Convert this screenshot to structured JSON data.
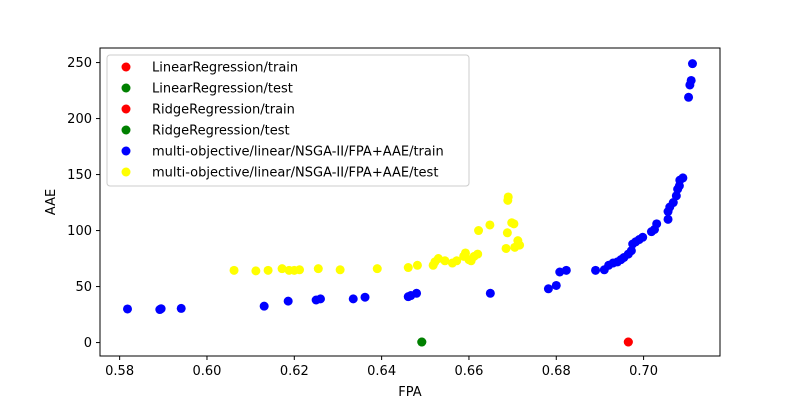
{
  "chart_data": {
    "type": "scatter",
    "xlabel": "FPA",
    "ylabel": "AAE",
    "xlim": [
      0.5755,
      0.7175
    ],
    "ylim": [
      -12,
      263
    ],
    "xticks": [
      0.58,
      0.6,
      0.62,
      0.64,
      0.66,
      0.68,
      0.7
    ],
    "yticks": [
      0,
      50,
      100,
      150,
      200,
      250
    ],
    "legend_position": "top-left",
    "series": [
      {
        "name": "LinearRegression/train",
        "color": "#ff0000",
        "points": [
          [
            0.6965,
            0.5
          ]
        ]
      },
      {
        "name": "LinearRegression/test",
        "color": "#008000",
        "points": [
          [
            0.6492,
            0.5
          ]
        ]
      },
      {
        "name": "RidgeRegression/train",
        "color": "#ff0000",
        "points": [
          [
            0.6965,
            0.5
          ]
        ]
      },
      {
        "name": "RidgeRegression/test",
        "color": "#008000",
        "points": [
          [
            0.6492,
            0.5
          ]
        ]
      },
      {
        "name": "multi-objective/linear/NSGA-II/FPA+AAE/train",
        "color": "#0000ff",
        "points": [
          [
            0.5818,
            30
          ],
          [
            0.5892,
            29.5
          ],
          [
            0.5895,
            30.2
          ],
          [
            0.5941,
            30.5
          ],
          [
            0.6131,
            32.5
          ],
          [
            0.6186,
            37
          ],
          [
            0.625,
            38
          ],
          [
            0.626,
            39
          ],
          [
            0.6335,
            39
          ],
          [
            0.6362,
            40.5
          ],
          [
            0.6461,
            41
          ],
          [
            0.6467,
            42
          ],
          [
            0.648,
            44
          ],
          [
            0.6649,
            44
          ],
          [
            0.6782,
            48
          ],
          [
            0.68,
            51
          ],
          [
            0.6808,
            63
          ],
          [
            0.6823,
            64.5
          ],
          [
            0.689,
            64.5
          ],
          [
            0.691,
            65
          ],
          [
            0.692,
            69
          ],
          [
            0.693,
            71
          ],
          [
            0.694,
            72
          ],
          [
            0.6948,
            74
          ],
          [
            0.6955,
            76
          ],
          [
            0.6965,
            79
          ],
          [
            0.6972,
            82
          ],
          [
            0.6975,
            88
          ],
          [
            0.6982,
            90
          ],
          [
            0.699,
            92
          ],
          [
            0.6998,
            94
          ],
          [
            0.7018,
            99
          ],
          [
            0.7025,
            101
          ],
          [
            0.703,
            106
          ],
          [
            0.7056,
            110
          ],
          [
            0.7056,
            117
          ],
          [
            0.706,
            121
          ],
          [
            0.7068,
            125
          ],
          [
            0.7075,
            131
          ],
          [
            0.7078,
            137
          ],
          [
            0.7082,
            140
          ],
          [
            0.7083,
            145
          ],
          [
            0.709,
            147
          ],
          [
            0.7103,
            219
          ],
          [
            0.7106,
            230
          ],
          [
            0.7109,
            234
          ],
          [
            0.7112,
            249
          ]
        ]
      },
      {
        "name": "multi-objective/linear/NSGA-II/FPA+AAE/test",
        "color": "#ffff00",
        "points": [
          [
            0.6062,
            64.5
          ],
          [
            0.6112,
            64
          ],
          [
            0.614,
            64.5
          ],
          [
            0.6172,
            66
          ],
          [
            0.6188,
            64.5
          ],
          [
            0.62,
            64.5
          ],
          [
            0.6212,
            65
          ],
          [
            0.6255,
            66
          ],
          [
            0.6305,
            65
          ],
          [
            0.639,
            66
          ],
          [
            0.6461,
            67
          ],
          [
            0.6482,
            69
          ],
          [
            0.6518,
            69
          ],
          [
            0.6522,
            72
          ],
          [
            0.653,
            75
          ],
          [
            0.6545,
            73
          ],
          [
            0.6562,
            71
          ],
          [
            0.6572,
            73
          ],
          [
            0.6588,
            77
          ],
          [
            0.6592,
            80
          ],
          [
            0.66,
            74
          ],
          [
            0.6605,
            73
          ],
          [
            0.6612,
            77
          ],
          [
            0.662,
            79
          ],
          [
            0.6622,
            100
          ],
          [
            0.6648,
            105
          ],
          [
            0.6685,
            84
          ],
          [
            0.6688,
            98
          ],
          [
            0.6689,
            127
          ],
          [
            0.669,
            130
          ],
          [
            0.6698,
            107
          ],
          [
            0.6703,
            106
          ],
          [
            0.6705,
            85
          ],
          [
            0.6712,
            91
          ],
          [
            0.6716,
            87
          ]
        ]
      }
    ]
  }
}
